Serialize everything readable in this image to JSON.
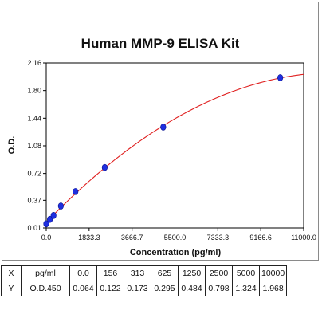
{
  "chart_data": {
    "type": "scatter",
    "title": "Human MMP-9 ELISA Kit",
    "xlabel": "Concentration (pg/ml)",
    "ylabel": "O.D.",
    "xlim": [
      0,
      11000
    ],
    "ylim": [
      0.01,
      2.16
    ],
    "x_ticks": [
      "0.0",
      "1833.3",
      "3666.7",
      "5500.0",
      "7333.3",
      "9166.6",
      "11000.0"
    ],
    "y_ticks": [
      "0.01",
      "0.37",
      "0.72",
      "1.08",
      "1.44",
      "1.80",
      "2.16"
    ],
    "grid": false,
    "x": [
      0,
      156,
      313,
      625,
      1250,
      2500,
      5000,
      10000
    ],
    "y": [
      0.064,
      0.122,
      0.173,
      0.295,
      0.484,
      0.798,
      1.324,
      1.968
    ],
    "point_color": "#1f2fe0",
    "curve_color": "#e02020"
  },
  "table": {
    "rows": [
      {
        "label": "X",
        "unit": "pg/ml",
        "values": [
          "0.0",
          "156",
          "313",
          "625",
          "1250",
          "2500",
          "5000",
          "10000"
        ]
      },
      {
        "label": "Y",
        "unit": "O.D.450",
        "values": [
          "0.064",
          "0.122",
          "0.173",
          "0.295",
          "0.484",
          "0.798",
          "1.324",
          "1.968"
        ]
      }
    ]
  }
}
